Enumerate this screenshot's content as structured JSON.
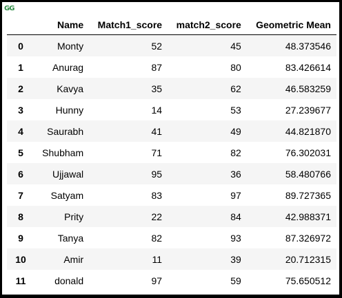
{
  "logo": {
    "text": "GG"
  },
  "table": {
    "columns": [
      "",
      "Name",
      "Match1_score",
      "match2_score",
      "Geometric Mean"
    ],
    "rows": [
      {
        "index": "0",
        "name": "Monty",
        "m1": "52",
        "m2": "45",
        "gm": "48.373546"
      },
      {
        "index": "1",
        "name": "Anurag",
        "m1": "87",
        "m2": "80",
        "gm": "83.426614"
      },
      {
        "index": "2",
        "name": "Kavya",
        "m1": "35",
        "m2": "62",
        "gm": "46.583259"
      },
      {
        "index": "3",
        "name": "Hunny",
        "m1": "14",
        "m2": "53",
        "gm": "27.239677"
      },
      {
        "index": "4",
        "name": "Saurabh",
        "m1": "41",
        "m2": "49",
        "gm": "44.821870"
      },
      {
        "index": "5",
        "name": "Shubham",
        "m1": "71",
        "m2": "82",
        "gm": "76.302031"
      },
      {
        "index": "6",
        "name": "Ujjawal",
        "m1": "95",
        "m2": "36",
        "gm": "58.480766"
      },
      {
        "index": "7",
        "name": "Satyam",
        "m1": "83",
        "m2": "97",
        "gm": "89.727365"
      },
      {
        "index": "8",
        "name": "Prity",
        "m1": "22",
        "m2": "84",
        "gm": "42.988371"
      },
      {
        "index": "9",
        "name": "Tanya",
        "m1": "82",
        "m2": "93",
        "gm": "87.326972"
      },
      {
        "index": "10",
        "name": "Amir",
        "m1": "11",
        "m2": "39",
        "gm": "20.712315"
      },
      {
        "index": "11",
        "name": "donald",
        "m1": "97",
        "m2": "59",
        "gm": "75.650512"
      }
    ]
  }
}
